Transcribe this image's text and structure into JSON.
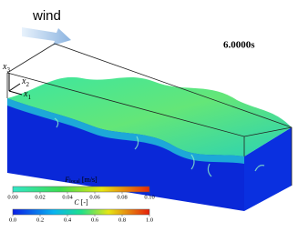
{
  "wind_label": "wind",
  "time": "6.0000s",
  "axes": [
    {
      "letter": "x",
      "index": "3"
    },
    {
      "letter": "x",
      "index": "2"
    },
    {
      "letter": "x",
      "index": "1"
    }
  ],
  "colorbars": [
    {
      "symbol": "F",
      "subscript": "local",
      "unit": "[m/s]",
      "ticks": [
        "0.00",
        "0.02",
        "0.04",
        "0.06",
        "0.08",
        "0.10"
      ]
    },
    {
      "symbol": "C",
      "subscript": "",
      "unit": "[-]",
      "ticks": [
        "0.0",
        "0.2",
        "0.4",
        "0.6",
        "0.8",
        "1.0"
      ]
    }
  ]
}
